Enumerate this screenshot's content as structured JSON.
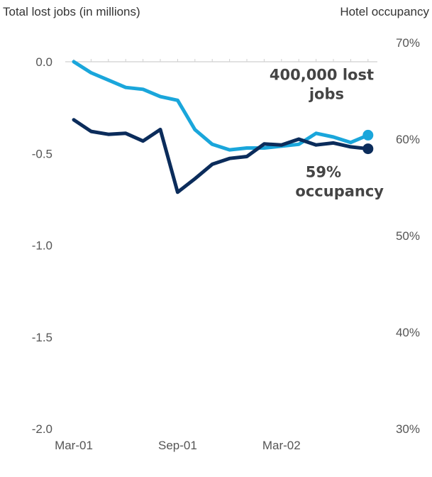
{
  "chart_data": {
    "type": "line",
    "x_tick_labels": [
      "Mar-01",
      "Sep-01",
      "Mar-02"
    ],
    "left_axis": {
      "label": "Total lost jobs (in millions)",
      "ylim": [
        -2.0,
        0.0
      ],
      "ticks": [
        0.0,
        -0.5,
        -1.0,
        -1.5,
        -2.0
      ],
      "tick_labels": [
        "0.0",
        "-0.5",
        "-1.0",
        "-1.5",
        "-2.0"
      ]
    },
    "right_axis": {
      "label": "Hotel occupancy",
      "ylim": [
        30,
        70
      ],
      "ticks": [
        70,
        60,
        50,
        40,
        30
      ],
      "tick_labels": [
        "70%",
        "60%",
        "50%",
        "40%",
        "30%"
      ]
    },
    "grid": false,
    "series": [
      {
        "axis": "left",
        "color": "#1aa6db",
        "x": [
          "Mar-01",
          "Apr-01",
          "May-01",
          "Jun-01",
          "Jul-01",
          "Aug-01",
          "Sep-01",
          "Oct-01",
          "Nov-01",
          "Dec-01",
          "Jan-02",
          "Feb-02",
          "Mar-02",
          "Apr-02",
          "May-02",
          "Jun-02",
          "Jul-02",
          "Aug-02"
        ],
        "values": [
          0.0,
          -0.06,
          -0.1,
          -0.14,
          -0.15,
          -0.19,
          -0.21,
          -0.37,
          -0.45,
          -0.48,
          -0.47,
          -0.47,
          -0.46,
          -0.45,
          -0.39,
          -0.41,
          -0.44,
          -0.4
        ]
      },
      {
        "axis": "right",
        "color": "#0b2c5b",
        "x": [
          "Mar-01",
          "Apr-01",
          "May-01",
          "Jun-01",
          "Jul-01",
          "Aug-01",
          "Sep-01",
          "Oct-01",
          "Nov-01",
          "Dec-01",
          "Jan-02",
          "Feb-02",
          "Mar-02",
          "Apr-02",
          "May-02",
          "Jun-02",
          "Jul-02",
          "Aug-02"
        ],
        "values": [
          62.0,
          60.8,
          60.5,
          60.6,
          59.8,
          61.0,
          54.5,
          55.9,
          57.4,
          58.0,
          58.2,
          59.5,
          59.4,
          60.0,
          59.4,
          59.6,
          59.2,
          59.0
        ]
      }
    ],
    "annotations": [
      {
        "lines": [
          "400,000 lost",
          "jobs"
        ],
        "series": 0
      },
      {
        "lines": [
          "59%",
          "occupancy"
        ],
        "series": 1
      }
    ]
  }
}
